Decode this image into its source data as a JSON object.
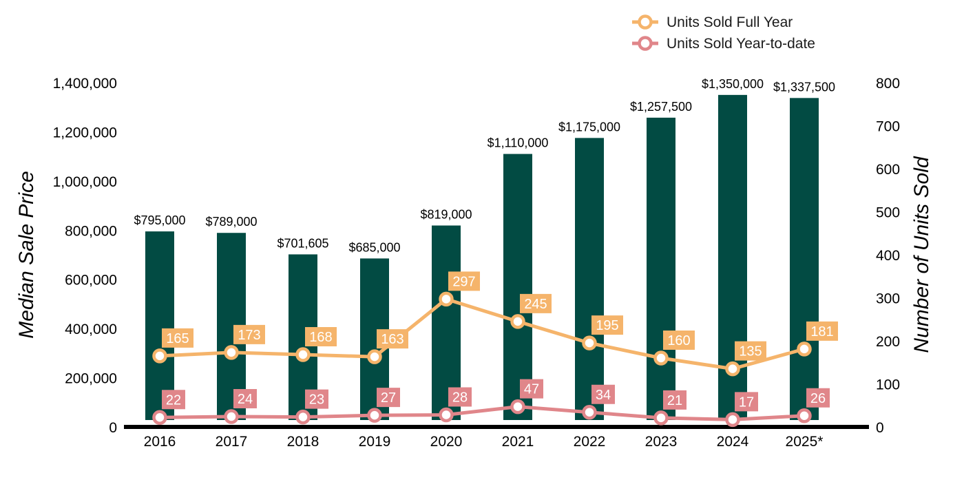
{
  "chart_data": {
    "type": "bar",
    "categories": [
      "2016",
      "2017",
      "2018",
      "2019",
      "2020",
      "2021",
      "2022",
      "2023",
      "2024",
      "2025*"
    ],
    "bar_series": {
      "values": [
        795000,
        789000,
        701605,
        685000,
        819000,
        1110000,
        1175000,
        1257500,
        1350000,
        1337500
      ],
      "labels": [
        "$795,000",
        "$789,000",
        "$701,605",
        "$685,000",
        "$819,000",
        "$1,110,000",
        "$1,175,000",
        "$1,257,500",
        "$1,350,000",
        "$1,337,500"
      ],
      "color": "#024b43"
    },
    "line_series": [
      {
        "name": "Units Sold Full Year",
        "values": [
          165,
          173,
          168,
          163,
          297,
          245,
          195,
          160,
          135,
          181
        ],
        "color": "#f5b46b"
      },
      {
        "name": "Units Sold Year-to-date",
        "values": [
          22,
          24,
          23,
          27,
          28,
          47,
          34,
          21,
          17,
          26
        ],
        "color": "#e0868a"
      }
    ],
    "ylabel": "Median Sale Price",
    "y2label": "Number of Units Sold",
    "ylim": [
      0,
      1400000
    ],
    "y2lim": [
      0,
      800
    ],
    "yticks": [
      "0",
      "200,000",
      "400,000",
      "600,000",
      "800,000",
      "1,000,000",
      "1,200,000",
      "1,400,000"
    ],
    "y2ticks": [
      "0",
      "100",
      "200",
      "300",
      "400",
      "500",
      "600",
      "700",
      "800"
    ],
    "legend_position": "top-right",
    "grid": false
  }
}
